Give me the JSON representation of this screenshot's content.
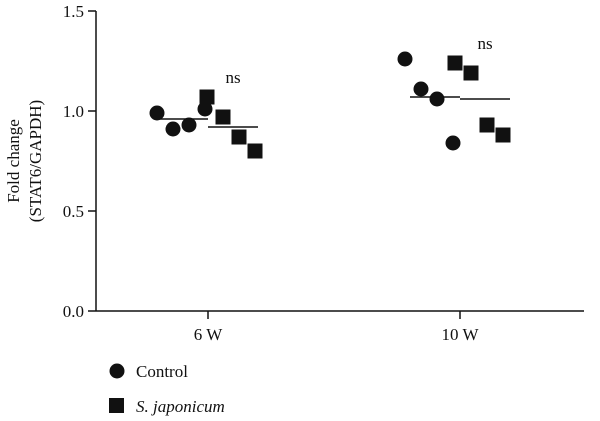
{
  "chart_data": {
    "type": "scatter",
    "ylabel": [
      "Fold change",
      "(STAT6/GAPDH)"
    ],
    "ylim": [
      0.0,
      1.5
    ],
    "yticks": [
      "0.0",
      "0.5",
      "1.0",
      "1.5"
    ],
    "grid": false,
    "categories": [
      "6 W",
      "10 W"
    ],
    "legend_position": "bottom-left",
    "series": [
      {
        "name": "Control",
        "marker": "circle",
        "italic": false,
        "color": "#111111",
        "groups": [
          {
            "category": "6 W",
            "values": [
              0.99,
              0.91,
              0.93,
              1.01
            ],
            "mean": 0.96
          },
          {
            "category": "10 W",
            "values": [
              1.26,
              1.11,
              1.06,
              0.84
            ],
            "mean": 1.07
          }
        ]
      },
      {
        "name": "S. japonicum",
        "marker": "square",
        "italic": true,
        "color": "#111111",
        "groups": [
          {
            "category": "6 W",
            "values": [
              1.07,
              0.97,
              0.87,
              0.8
            ],
            "mean": 0.92,
            "annotation": "ns"
          },
          {
            "category": "10 W",
            "values": [
              1.24,
              1.19,
              0.93,
              0.88
            ],
            "mean": 1.06,
            "annotation": "ns"
          }
        ]
      }
    ]
  }
}
